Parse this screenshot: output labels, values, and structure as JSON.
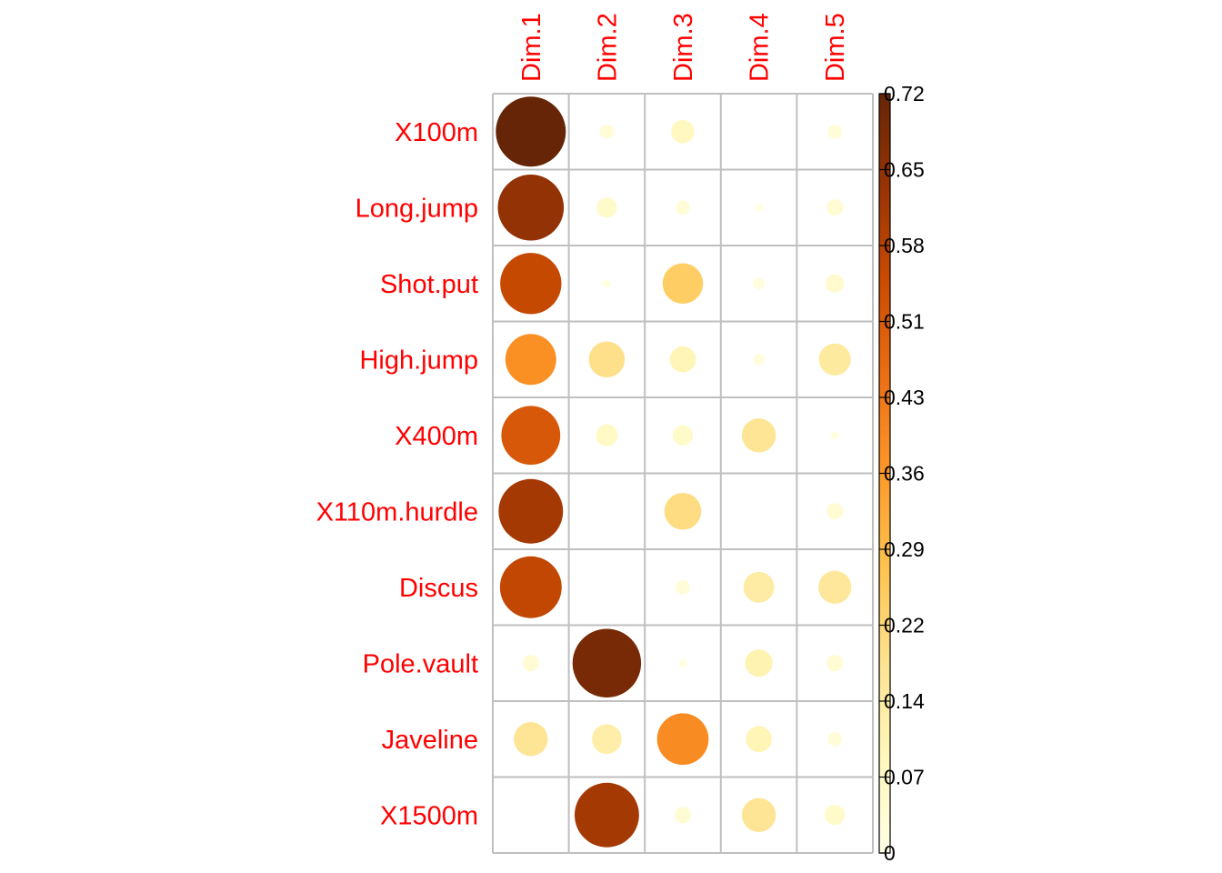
{
  "chart_data": {
    "type": "heatmap",
    "title": "",
    "rows": [
      "X100m",
      "Long.jump",
      "Shot.put",
      "High.jump",
      "X400m",
      "X110m.hurdle",
      "Discus",
      "Pole.vault",
      "Javeline",
      "X1500m"
    ],
    "columns": [
      "Dim.1",
      "Dim.2",
      "Dim.3",
      "Dim.4",
      "Dim.5"
    ],
    "values": [
      [
        0.72,
        0.03,
        0.08,
        0.0,
        0.03
      ],
      [
        0.64,
        0.06,
        0.03,
        0.01,
        0.04
      ],
      [
        0.55,
        0.01,
        0.24,
        0.02,
        0.05
      ],
      [
        0.38,
        0.19,
        0.1,
        0.02,
        0.15
      ],
      [
        0.51,
        0.07,
        0.06,
        0.17,
        0.01
      ],
      [
        0.61,
        0.0,
        0.2,
        0.0,
        0.04
      ],
      [
        0.56,
        0.0,
        0.03,
        0.14,
        0.16
      ],
      [
        0.04,
        0.69,
        0.01,
        0.11,
        0.04
      ],
      [
        0.17,
        0.13,
        0.39,
        0.1,
        0.03
      ],
      [
        0.0,
        0.61,
        0.04,
        0.17,
        0.06
      ]
    ],
    "legend": {
      "ticks": [
        "0.72",
        "0.65",
        "0.58",
        "0.51",
        "0.43",
        "0.36",
        "0.29",
        "0.22",
        "0.14",
        "0.07",
        "0"
      ],
      "range": [
        0,
        0.72
      ],
      "placement": "right"
    },
    "colors": {
      "label_color": "#ff0000",
      "grid_color": "#bfbfbf",
      "scale": [
        "#ffffe5",
        "#fff7bc",
        "#fee391",
        "#fec44f",
        "#fe9929",
        "#ec7014",
        "#cc4c02",
        "#993404",
        "#662506"
      ]
    }
  }
}
